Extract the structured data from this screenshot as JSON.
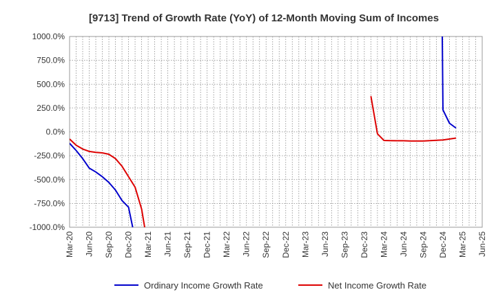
{
  "chart_data": {
    "type": "line",
    "title": "[9713]  Trend of Growth Rate (YoY) of 12-Month Moving Sum of Incomes",
    "xlabel": "",
    "ylabel": "",
    "ylim": [
      -1000,
      1000
    ],
    "y_ticks": [
      "1000.0%",
      "750.0%",
      "500.0%",
      "250.0%",
      "0.0%",
      "-250.0%",
      "-500.0%",
      "-750.0%",
      "-1000.0%"
    ],
    "y_tick_values": [
      1000,
      750,
      500,
      250,
      0,
      -250,
      -500,
      -750,
      -1000
    ],
    "x_ticks": [
      "Mar-20",
      "Jun-20",
      "Sep-20",
      "Dec-20",
      "Mar-21",
      "Jun-21",
      "Sep-21",
      "Dec-21",
      "Mar-22",
      "Jun-22",
      "Sep-22",
      "Dec-22",
      "Mar-23",
      "Jun-23",
      "Sep-23",
      "Dec-23",
      "Mar-24",
      "Jun-24",
      "Sep-24",
      "Dec-24",
      "Mar-25",
      "Jun-25"
    ],
    "x_range": [
      "2020-03",
      "2025-06"
    ],
    "grid": true,
    "legend_position": "bottom",
    "series": [
      {
        "name": "Ordinary Income Growth Rate",
        "color": "#0000cc",
        "x": [
          "2020-03",
          "2020-04",
          "2020-05",
          "2020-06",
          "2020-07",
          "2020-08",
          "2020-09",
          "2020-10",
          "2020-11",
          "2020-12",
          "2020-12-20",
          "2024-11-28",
          "2024-12",
          "2025-01",
          "2025-02"
        ],
        "values": [
          -120,
          -195,
          -280,
          -380,
          -420,
          -470,
          -530,
          -610,
          -720,
          -790,
          -1000,
          1000,
          230,
          90,
          40
        ]
      },
      {
        "name": "Net Income Growth Rate",
        "color": "#dd0000",
        "x": [
          "2020-03",
          "2020-04",
          "2020-05",
          "2020-06",
          "2020-07",
          "2020-08",
          "2020-09",
          "2020-10",
          "2020-11",
          "2020-12",
          "2021-01",
          "2021-02",
          "2021-02-15",
          "2024-01",
          "2024-02",
          "2024-03",
          "2024-04",
          "2024-05",
          "2024-06",
          "2024-07",
          "2024-08",
          "2024-09",
          "2024-10",
          "2024-11",
          "2024-12",
          "2025-01",
          "2025-02"
        ],
        "values": [
          -75,
          -140,
          -180,
          -205,
          -215,
          -220,
          -235,
          -280,
          -360,
          -470,
          -580,
          -810,
          -1000,
          375,
          -20,
          -90,
          -92,
          -93,
          -93,
          -95,
          -96,
          -95,
          -92,
          -88,
          -85,
          -75,
          -65
        ]
      }
    ]
  }
}
